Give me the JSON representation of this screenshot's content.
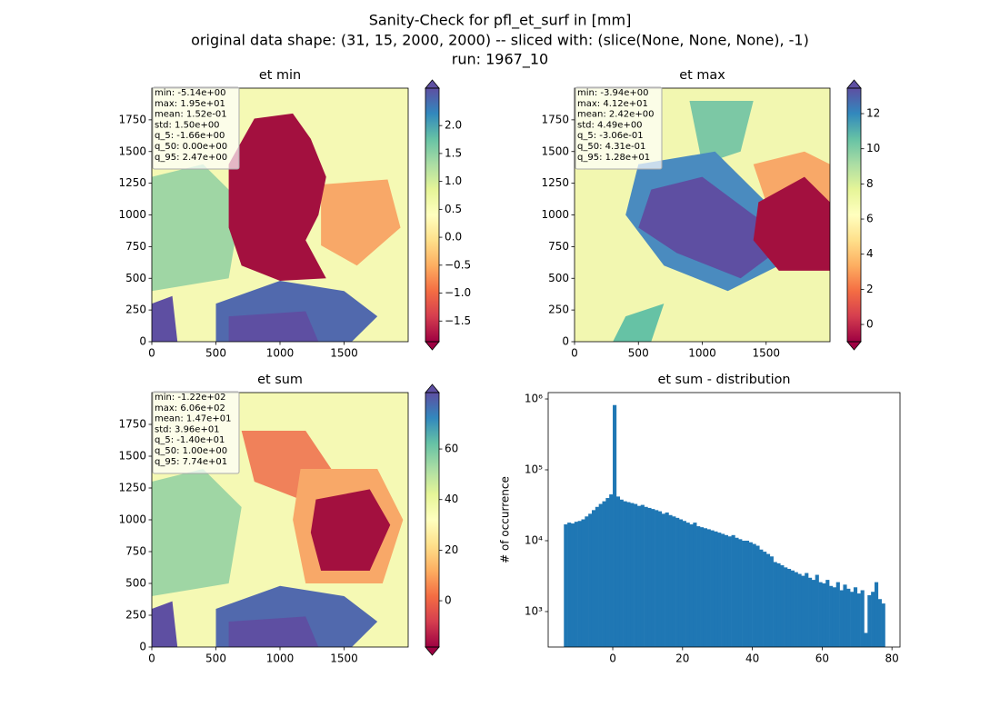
{
  "figure_title": [
    "Sanity-Check for pfl_et_surf in [mm]",
    "original data shape: (31, 15, 2000, 2000) -- sliced with: (slice(None, None, None), -1)",
    "run: 1967_10"
  ],
  "chart_data": [
    {
      "type": "heatmap",
      "title": "et min",
      "colormap": "Spectral",
      "xlim": [
        0,
        2000
      ],
      "ylim": [
        0,
        2000
      ],
      "xticks": [
        0,
        500,
        1000,
        1500
      ],
      "yticks": [
        0,
        250,
        500,
        750,
        1000,
        1250,
        1500,
        1750
      ],
      "colorbar": {
        "lim": [
          -1.87,
          2.67
        ],
        "ticks": [
          {
            "value": -1.5,
            "label": "−1.5"
          },
          {
            "value": -1,
            "label": "−1.0"
          },
          {
            "value": -0.5,
            "label": "−0.5"
          },
          {
            "value": 0,
            "label": "0.0"
          },
          {
            "value": 0.5,
            "label": "0.5"
          },
          {
            "value": 1,
            "label": "1.0"
          },
          {
            "value": 1.5,
            "label": "1.5"
          },
          {
            "value": 2,
            "label": "2.0"
          }
        ]
      },
      "stats": [
        "min: -5.14e+00",
        "max: 1.95e+01",
        "mean: 1.52e-01",
        "std: 1.50e+00",
        "q_5: -1.66e+00",
        "q_50: 0.00e+00",
        "q_95: 2.47e+00"
      ]
    },
    {
      "type": "heatmap",
      "title": "et max",
      "colormap": "Spectral",
      "xlim": [
        0,
        2000
      ],
      "ylim": [
        0,
        2000
      ],
      "xticks": [
        0,
        500,
        1000,
        1500
      ],
      "yticks": [
        0,
        250,
        500,
        750,
        1000,
        1250,
        1500,
        1750
      ],
      "colorbar": {
        "lim": [
          -0.98,
          13.45
        ],
        "ticks": [
          0,
          2,
          4,
          6,
          8,
          10,
          12
        ]
      },
      "stats": [
        "min: -3.94e+00",
        "max: 4.12e+01",
        "mean: 2.42e+00",
        "std: 4.49e+00",
        "q_5: -3.06e-01",
        "q_50: 4.31e-01",
        "q_95: 1.28e+01"
      ]
    },
    {
      "type": "heatmap",
      "title": "et sum",
      "colormap": "Spectral",
      "xlim": [
        0,
        2000
      ],
      "ylim": [
        0,
        2000
      ],
      "xticks": [
        0,
        500,
        1000,
        1500
      ],
      "yticks": [
        0,
        250,
        500,
        750,
        1000,
        1250,
        1500,
        1750
      ],
      "colorbar": {
        "lim": [
          -18.3,
          82.3
        ],
        "ticks": [
          0,
          20,
          40,
          60
        ]
      },
      "stats": [
        "min: -1.22e+02",
        "max: 6.06e+02",
        "mean: 1.47e+01",
        "std: 3.96e+01",
        "q_5: -1.40e+01",
        "q_50: 1.00e+00",
        "q_95: 7.74e+01"
      ]
    },
    {
      "type": "histogram",
      "title": "et sum - distribution",
      "ylabel": "# of occurrence",
      "color": "#1f77b4",
      "log_y": true,
      "xlim": [
        -18.5,
        82.3
      ],
      "ylim": [
        316,
        1230000
      ],
      "xticks": [
        0,
        20,
        40,
        60,
        80
      ],
      "yticks": [
        {
          "value": 1000,
          "label": "10³"
        },
        {
          "value": 10000,
          "label": "10⁴"
        },
        {
          "value": 100000,
          "label": "10⁵"
        },
        {
          "value": 1000000,
          "label": "10⁶"
        }
      ],
      "bins": [
        -14,
        -13,
        -12,
        -11,
        -10,
        -9,
        -8,
        -7,
        -6,
        -5,
        -4,
        -3,
        -2,
        -1,
        0,
        1,
        2,
        3,
        4,
        5,
        6,
        7,
        8,
        9,
        10,
        11,
        12,
        13,
        14,
        15,
        16,
        17,
        18,
        19,
        20,
        21,
        22,
        23,
        24,
        25,
        26,
        27,
        28,
        29,
        30,
        31,
        32,
        33,
        34,
        35,
        36,
        37,
        38,
        39,
        40,
        41,
        42,
        43,
        44,
        45,
        46,
        47,
        48,
        49,
        50,
        51,
        52,
        53,
        54,
        55,
        56,
        57,
        58,
        59,
        60,
        61,
        62,
        63,
        64,
        65,
        66,
        67,
        68,
        69,
        70,
        71,
        72,
        73,
        74,
        75,
        76,
        77,
        78
      ],
      "values": [
        17000,
        18000,
        17500,
        18500,
        19000,
        20000,
        22000,
        24000,
        27000,
        30000,
        33000,
        36000,
        40000,
        45000,
        820000,
        42000,
        38000,
        36000,
        35000,
        34000,
        33000,
        31000,
        32000,
        30000,
        29000,
        28000,
        27000,
        26000,
        24000,
        25000,
        23000,
        22000,
        21000,
        20000,
        19000,
        18000,
        17000,
        18000,
        16000,
        15500,
        15000,
        14500,
        14000,
        13500,
        13000,
        12500,
        12000,
        11500,
        12000,
        11000,
        10500,
        10000,
        10000,
        9500,
        9000,
        8500,
        7500,
        7000,
        6500,
        6000,
        5000,
        4800,
        4500,
        4200,
        4000,
        3800,
        3600,
        3400,
        3200,
        3500,
        3000,
        2800,
        3300,
        2600,
        2500,
        2800,
        2300,
        2200,
        2600,
        2000,
        2400,
        2100,
        1900,
        2200,
        1800,
        2000,
        500,
        1700,
        1900,
        2600,
        1500,
        1300
      ]
    }
  ]
}
